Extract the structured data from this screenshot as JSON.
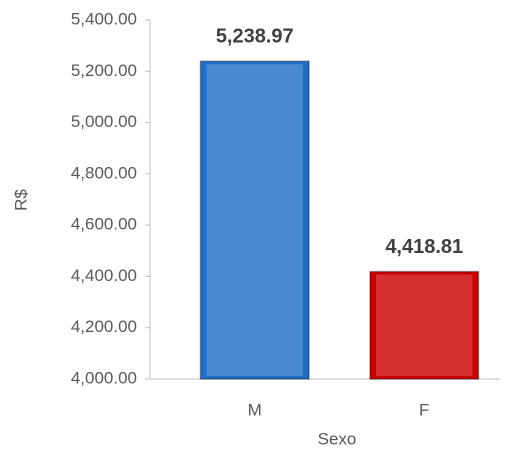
{
  "chart_data": {
    "type": "bar",
    "x_label": "Sexo",
    "y_label": "R$",
    "categories": [
      "M",
      "F"
    ],
    "series": [
      {
        "name": null,
        "values": [
          5238.97,
          4418.81
        ],
        "value_labels": [
          "5,238.97",
          "4,418.81"
        ],
        "colors": [
          "#1f6fc8",
          "#cc0000"
        ]
      }
    ],
    "ylim": [
      4000,
      5400
    ],
    "yticks": [
      {
        "value": 4000,
        "label": "4,000.00"
      },
      {
        "value": 4200,
        "label": "4,200.00"
      },
      {
        "value": 4400,
        "label": "4,400.00"
      },
      {
        "value": 4600,
        "label": "4,600.00"
      },
      {
        "value": 4800,
        "label": "4,800.00"
      },
      {
        "value": 5000,
        "label": "5,000.00"
      },
      {
        "value": 5200,
        "label": "5,200.00"
      },
      {
        "value": 5400,
        "label": "5,400.00"
      }
    ],
    "grid": false
  }
}
